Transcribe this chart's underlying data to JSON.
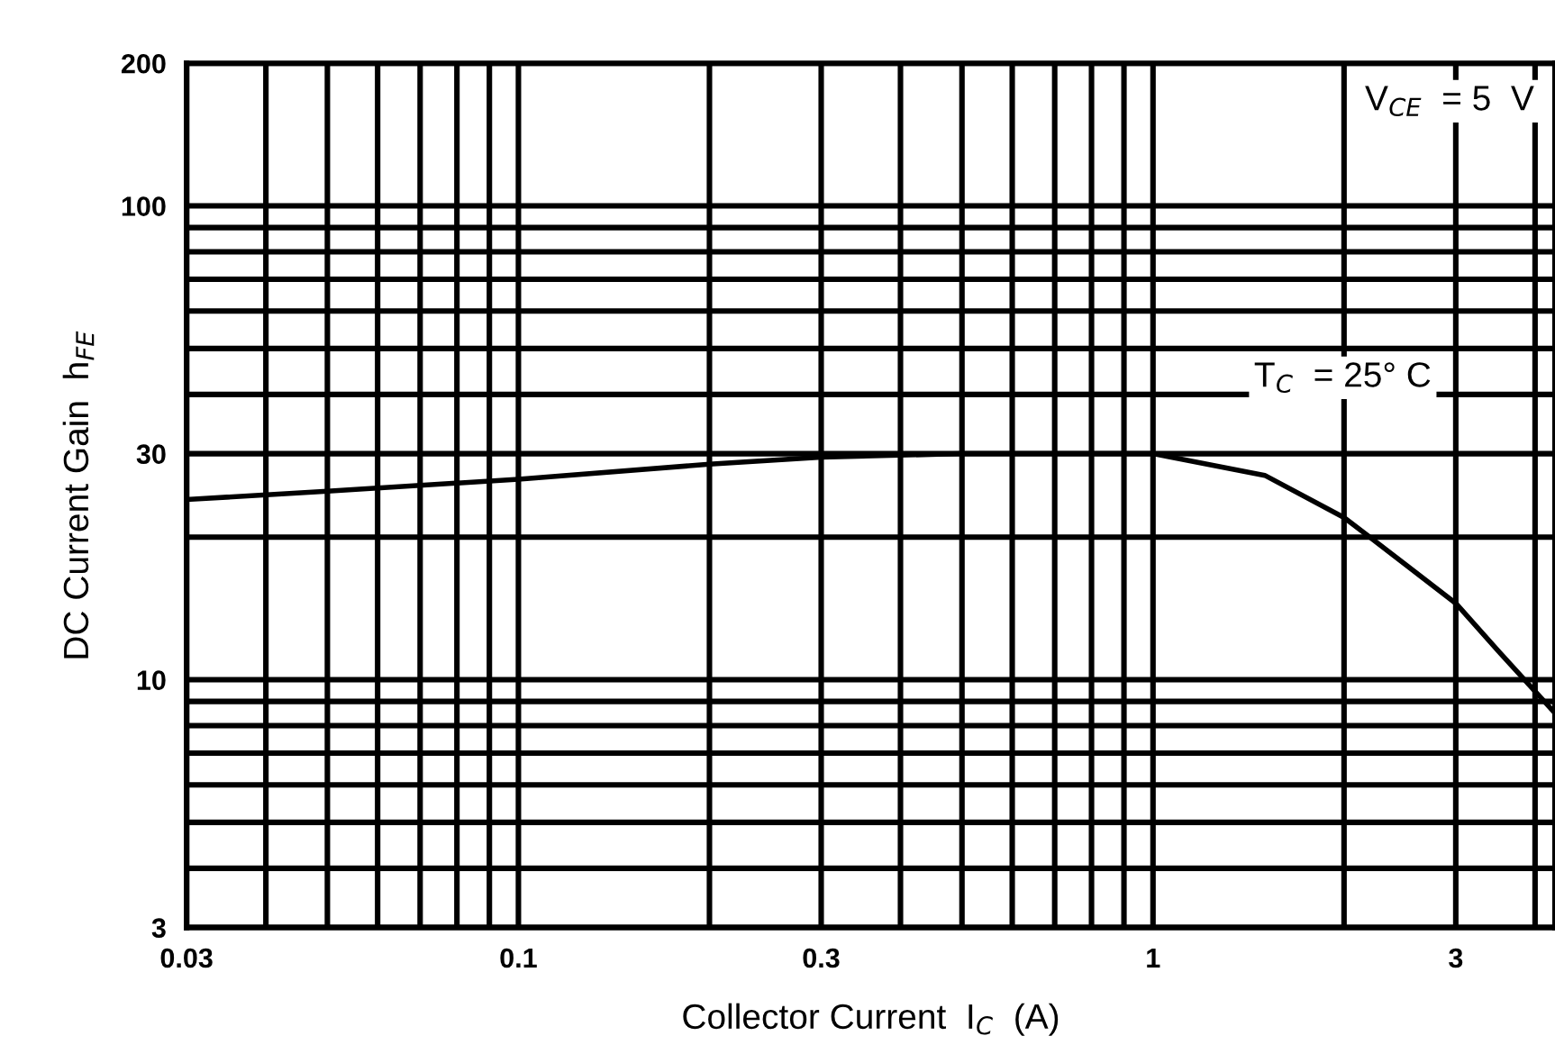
{
  "chart_data": {
    "type": "line",
    "xlabel": "Collector Current  I$_{C}$  (A)",
    "ylabel": "DC Current Gain  h$_{FE}$",
    "log": "xy",
    "grid": true,
    "marker": "none",
    "line_style": "solid",
    "annotations": [
      "V$_{CE}$  = 5  V",
      "T$_{C}$  = 25° C"
    ],
    "xlim": [
      0.03,
      4.3
    ],
    "ylim": [
      3,
      200
    ],
    "xticks": [
      0.03,
      {
        "value": 0.04,
        "label": null
      },
      {
        "value": 0.05,
        "label": null
      },
      {
        "value": 0.06,
        "label": null
      },
      {
        "value": 0.07,
        "label": null
      },
      {
        "value": 0.08,
        "label": null
      },
      {
        "value": 0.09,
        "label": null
      },
      0.1,
      {
        "value": 0.2,
        "label": null
      },
      0.3,
      {
        "value": 0.4,
        "label": null
      },
      {
        "value": 0.5,
        "label": null
      },
      {
        "value": 0.6,
        "label": null
      },
      {
        "value": 0.7,
        "label": null
      },
      {
        "value": 0.8,
        "label": null
      },
      {
        "value": 0.9,
        "label": null
      },
      1,
      {
        "value": 2,
        "label": null
      },
      3,
      {
        "value": 4,
        "label": null
      }
    ],
    "yticks": [
      3,
      {
        "value": 4,
        "label": null
      },
      {
        "value": 5,
        "label": null
      },
      {
        "value": 6,
        "label": null
      },
      {
        "value": 7,
        "label": null
      },
      {
        "value": 8,
        "label": null
      },
      {
        "value": 9,
        "label": null
      },
      10,
      {
        "value": 20,
        "label": null
      },
      30,
      {
        "value": 40,
        "label": null
      },
      {
        "value": 50,
        "label": null
      },
      {
        "value": 60,
        "label": null
      },
      {
        "value": 70,
        "label": null
      },
      {
        "value": 80,
        "label": null
      },
      {
        "value": 90,
        "label": null
      },
      100,
      200
    ],
    "series": [
      {
        "color": "#000000",
        "x": [
          0.03,
          0.05,
          0.1,
          0.2,
          0.3,
          0.5,
          1,
          1.5,
          2,
          2.5,
          3,
          3.5,
          4.3
        ],
        "values": [
          24,
          25,
          26.5,
          28.5,
          29.5,
          30,
          30,
          27,
          22,
          17.5,
          14.5,
          11.5,
          8.5
        ]
      }
    ]
  }
}
